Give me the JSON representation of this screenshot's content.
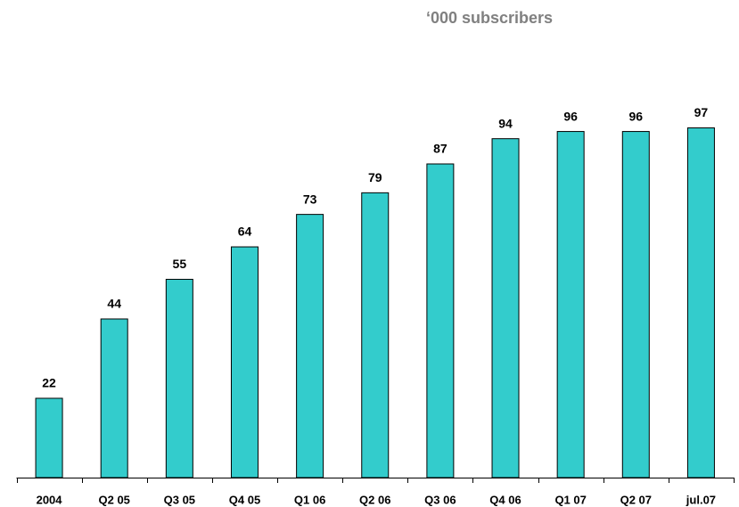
{
  "chart_data": {
    "type": "bar",
    "title": "‘000 subscribers",
    "categories": [
      "2004",
      "Q2 05",
      "Q3 05",
      "Q4 05",
      "Q1 06",
      "Q2 06",
      "Q3 06",
      "Q4 06",
      "Q1 07",
      "Q2 07",
      "jul.07"
    ],
    "values": [
      22,
      44,
      55,
      64,
      73,
      79,
      87,
      94,
      96,
      96,
      97
    ],
    "color": "#33cccc",
    "ylim": [
      0,
      130
    ]
  }
}
